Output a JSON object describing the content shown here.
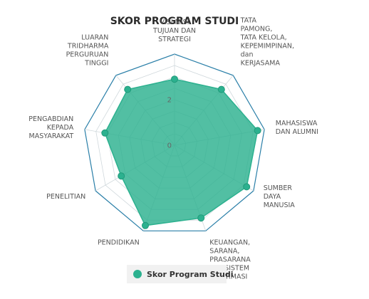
{
  "chart_data": {
    "type": "radar",
    "title": "SKOR PROGRAM STUDI",
    "categories": [
      "VISI MISI\nTUJUAN DAN\nSTRATEGI",
      "TATA\nPAMONG,\nTATA KELOLA,\nKEPEMIMPINAN,\ndan\nKERJASAMA",
      "MAHASISWA\nDAN ALUMNI",
      "SUMBER\nDAYA\nMANUSIA",
      "KEUANGAN,\nSARANA,\nPRASARANA\ndan SISTEM\nINFORMASI",
      "PENDIDIKAN",
      "PENELITIAN",
      "PENGABDIAN\nKEPADA\nMASYARAKAT",
      "LUARAN\nTRIDHARMA\nPERGURUAN\nTINGGI"
    ],
    "series": [
      {
        "name": "Skor Program Studi",
        "values": [
          2.9,
          3.2,
          3.7,
          3.65,
          3.4,
          3.75,
          2.7,
          3.1,
          3.2
        ],
        "color": "#2cb18f"
      }
    ],
    "rlim": [
      0,
      4
    ],
    "tick_labels": [
      "0",
      "2"
    ],
    "tick_values": [
      0,
      2
    ],
    "grid_rings": 8,
    "outer_ring_color": "#2a7fa8",
    "grid_color": "#d0d8dc",
    "legend_position": "bottom"
  }
}
